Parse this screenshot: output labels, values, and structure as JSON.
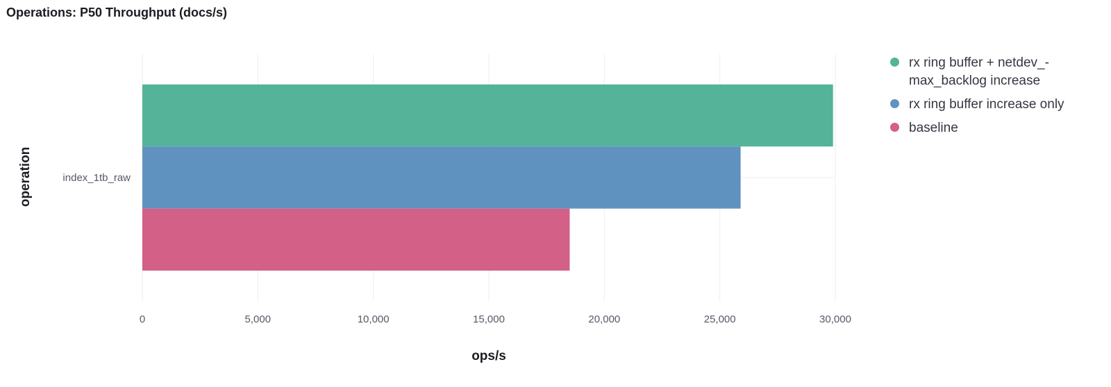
{
  "panel": {
    "title": "Operations: P50 Throughput (docs/s)"
  },
  "chart_data": {
    "type": "bar",
    "orientation": "horizontal",
    "categories": [
      "index_1tb_raw"
    ],
    "series": [
      {
        "name": "rx ring buffer + netdev_-max_backlog increase",
        "color": "#54b399",
        "values": [
          29900
        ]
      },
      {
        "name": "rx ring buffer increase only",
        "color": "#6092c0",
        "values": [
          25900
        ]
      },
      {
        "name": "baseline",
        "color": "#d36086",
        "values": [
          18500
        ]
      }
    ],
    "xlabel": "ops/s",
    "ylabel": "operation",
    "xlim": [
      0,
      30000
    ],
    "x_ticks": [
      "0",
      "5,000",
      "10,000",
      "15,000",
      "20,000",
      "25,000",
      "30,000"
    ],
    "grid": true,
    "legend_position": "right"
  },
  "legend": {
    "items": [
      {
        "label_lines": [
          "rx ring buffer + netdev_-",
          "max_backlog increase"
        ],
        "color": "#54b399"
      },
      {
        "label_lines": [
          "rx ring buffer increase only"
        ],
        "color": "#6092c0"
      },
      {
        "label_lines": [
          "baseline"
        ],
        "color": "#d36086"
      }
    ]
  }
}
